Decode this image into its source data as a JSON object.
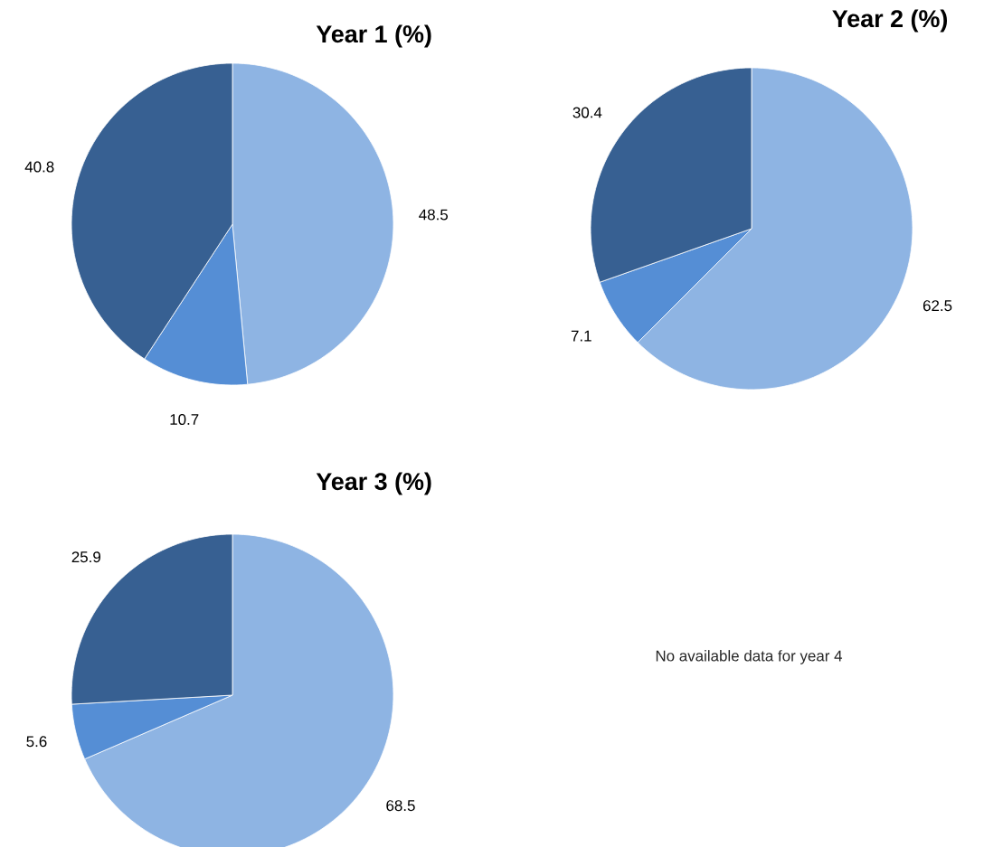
{
  "chart_data": [
    {
      "type": "pie",
      "title": "Year 1 (%)",
      "categories": [
        null,
        null,
        null
      ],
      "values": [
        48.5,
        10.7,
        40.8
      ],
      "colors": [
        "#8eb4e3",
        "#558ed5",
        "#376092"
      ],
      "data_labels": true
    },
    {
      "type": "pie",
      "title": "Year 2 (%)",
      "categories": [
        null,
        null,
        null
      ],
      "values": [
        62.5,
        7.1,
        30.4
      ],
      "colors": [
        "#8eb4e3",
        "#558ed5",
        "#376092"
      ],
      "data_labels": true
    },
    {
      "type": "pie",
      "title": "Year 3 (%)",
      "categories": [
        null,
        null,
        null
      ],
      "values": [
        68.5,
        5.6,
        25.9
      ],
      "colors": [
        "#8eb4e3",
        "#558ed5",
        "#376092"
      ],
      "data_labels": true
    },
    {
      "type": "other",
      "annotations": [
        "No available data for year 4"
      ]
    }
  ]
}
